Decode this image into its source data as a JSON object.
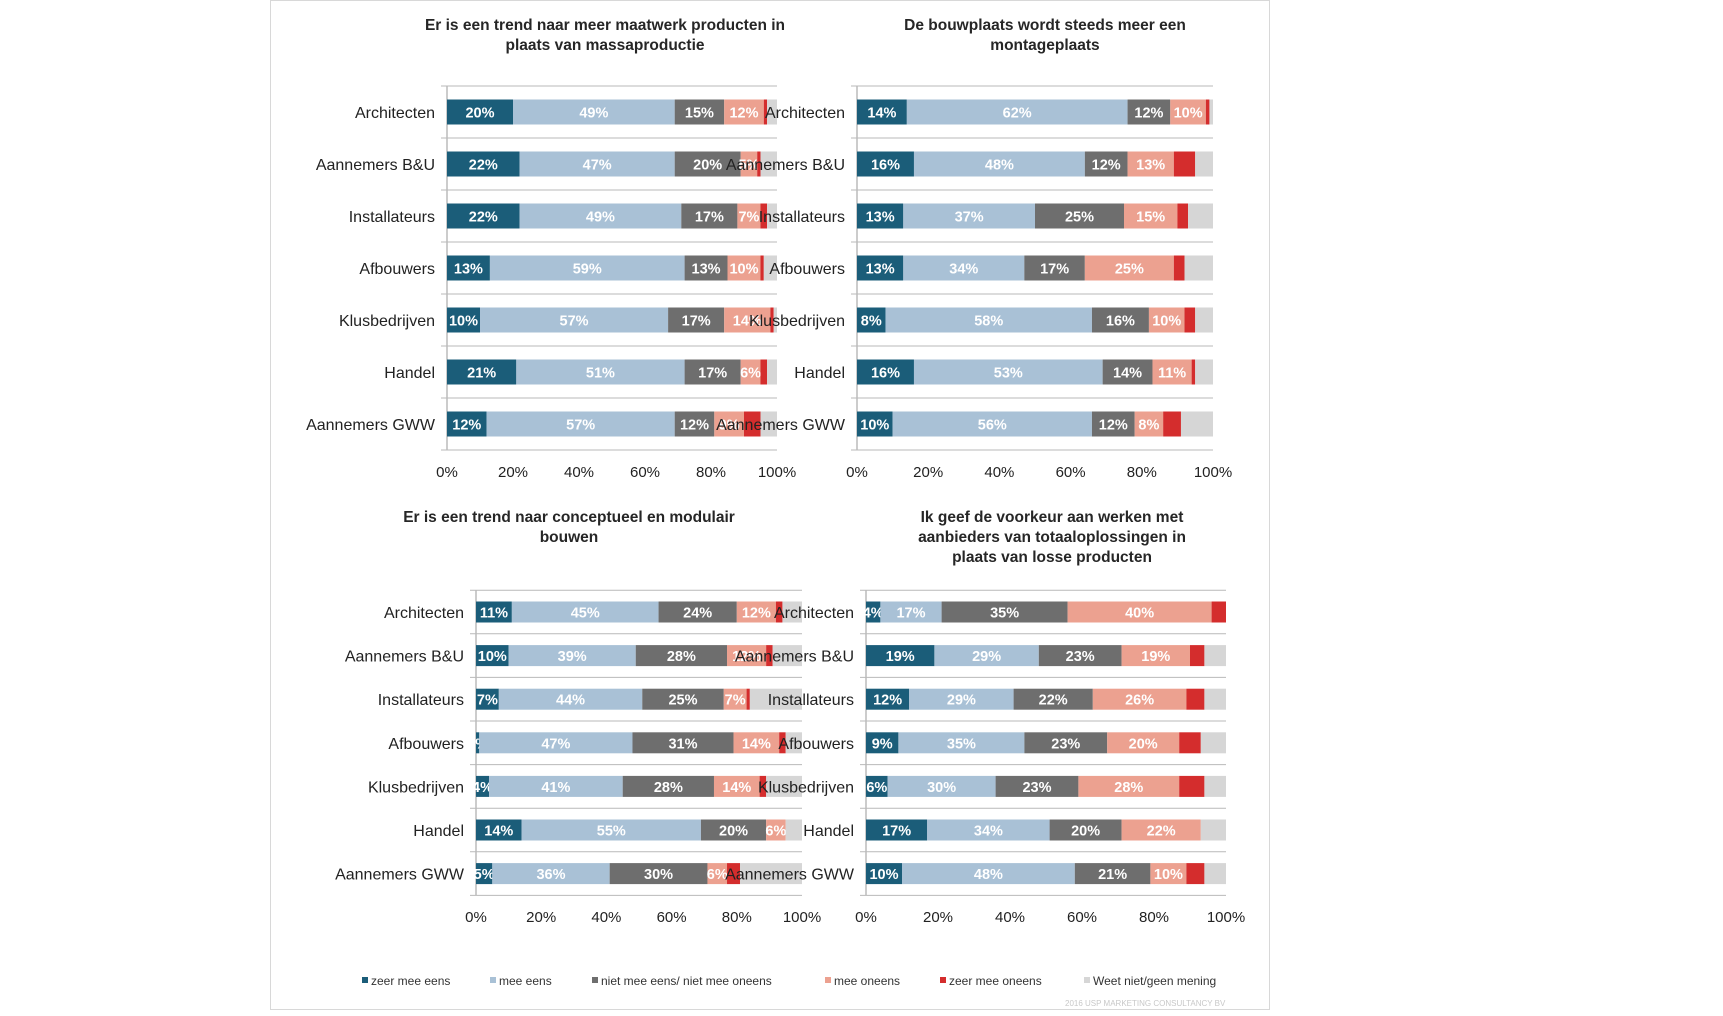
{
  "chart_data": [
    {
      "type": "bar",
      "orientation": "horizontal-stacked-100",
      "title": "Er is een trend naar meer maatwerk producten in plaats van massaproductie",
      "title_lines": [
        "Er is een trend naar meer maatwerk producten in",
        "plaats van massaproductie"
      ],
      "categories": [
        "Architecten",
        "Aannemers B&U",
        "Installateurs",
        "Afbouwers",
        "Klusbedrijven",
        "Handel",
        "Aannemers GWW"
      ],
      "x_ticks": [
        "0%",
        "20%",
        "40%",
        "60%",
        "80%",
        "100%"
      ],
      "xlim": [
        0,
        100
      ],
      "series": [
        {
          "name": "zeer mee eens",
          "values": [
            20,
            22,
            22,
            13,
            10,
            21,
            12
          ],
          "labels": [
            "20%",
            "22%",
            "22%",
            "13%",
            "10%",
            "21%",
            "12%"
          ]
        },
        {
          "name": "mee eens",
          "values": [
            49,
            47,
            49,
            59,
            57,
            51,
            57
          ],
          "labels": [
            "49%",
            "47%",
            "49%",
            "59%",
            "57%",
            "51%",
            "57%"
          ]
        },
        {
          "name": "niet mee eens/ niet mee oneens",
          "values": [
            15,
            20,
            17,
            13,
            17,
            17,
            12
          ],
          "labels": [
            "15%",
            "20%",
            "17%",
            "13%",
            "17%",
            "17%",
            "12%"
          ]
        },
        {
          "name": "mee oneens",
          "values": [
            12,
            5,
            7,
            10,
            14,
            6,
            9
          ],
          "labels": [
            "12%",
            "5%",
            "7%",
            "10%",
            "14%",
            "6%",
            "9%"
          ]
        },
        {
          "name": "zeer mee oneens",
          "values": [
            1,
            1,
            2,
            1,
            1,
            2,
            5
          ],
          "labels": [
            "",
            "",
            "",
            "",
            "",
            "",
            ""
          ]
        },
        {
          "name": "Weet niet/geen mening",
          "values": [
            3,
            5,
            3,
            4,
            1,
            3,
            5
          ],
          "labels": [
            "",
            "",
            "",
            "",
            "",
            "",
            ""
          ]
        }
      ]
    },
    {
      "type": "bar",
      "orientation": "horizontal-stacked-100",
      "title": "De bouwplaats wordt steeds meer een montageplaats",
      "title_lines": [
        "De bouwplaats wordt steeds meer een",
        "montageplaats"
      ],
      "categories": [
        "Architecten",
        "Aannemers B&U",
        "Installateurs",
        "Afbouwers",
        "Klusbedrijven",
        "Handel",
        "Aannemers GWW"
      ],
      "x_ticks": [
        "0%",
        "20%",
        "40%",
        "60%",
        "80%",
        "100%"
      ],
      "xlim": [
        0,
        100
      ],
      "series": [
        {
          "name": "zeer mee eens",
          "values": [
            14,
            16,
            13,
            13,
            8,
            16,
            10
          ],
          "labels": [
            "14%",
            "16%",
            "13%",
            "13%",
            "8%",
            "16%",
            "10%"
          ]
        },
        {
          "name": "mee eens",
          "values": [
            62,
            48,
            37,
            34,
            58,
            53,
            56
          ],
          "labels": [
            "62%",
            "48%",
            "37%",
            "34%",
            "58%",
            "53%",
            "56%"
          ]
        },
        {
          "name": "niet mee eens/ niet mee oneens",
          "values": [
            12,
            12,
            25,
            17,
            16,
            14,
            12
          ],
          "labels": [
            "12%",
            "12%",
            "25%",
            "17%",
            "16%",
            "14%",
            "12%"
          ]
        },
        {
          "name": "mee oneens",
          "values": [
            10,
            13,
            15,
            25,
            10,
            11,
            8
          ],
          "labels": [
            "10%",
            "13%",
            "15%",
            "25%",
            "10%",
            "11%",
            "8%"
          ]
        },
        {
          "name": "zeer mee oneens",
          "values": [
            1,
            6,
            3,
            3,
            3,
            1,
            5
          ],
          "labels": [
            "",
            "",
            "",
            "",
            "",
            "",
            ""
          ]
        },
        {
          "name": "Weet niet/geen mening",
          "values": [
            1,
            5,
            7,
            8,
            5,
            5,
            9
          ],
          "labels": [
            "",
            "",
            "",
            "",
            "",
            "",
            ""
          ]
        }
      ]
    },
    {
      "type": "bar",
      "orientation": "horizontal-stacked-100",
      "title": "Er is een trend naar conceptueel en modulair bouwen",
      "title_lines": [
        "Er is een trend naar conceptueel en modulair",
        "bouwen"
      ],
      "categories": [
        "Architecten",
        "Aannemers B&U",
        "Installateurs",
        "Afbouwers",
        "Klusbedrijven",
        "Handel",
        "Aannemers GWW"
      ],
      "x_ticks": [
        "0%",
        "20%",
        "40%",
        "60%",
        "80%",
        "100%"
      ],
      "xlim": [
        0,
        100
      ],
      "series": [
        {
          "name": "zeer mee eens",
          "values": [
            11,
            10,
            7,
            1,
            4,
            14,
            5
          ],
          "labels": [
            "11%",
            "10%",
            "7%",
            "1%",
            "4%",
            "14%",
            "5%"
          ]
        },
        {
          "name": "mee eens",
          "values": [
            45,
            39,
            44,
            47,
            41,
            55,
            36
          ],
          "labels": [
            "45%",
            "39%",
            "44%",
            "47%",
            "41%",
            "55%",
            "36%"
          ]
        },
        {
          "name": "niet mee eens/ niet mee oneens",
          "values": [
            24,
            28,
            25,
            31,
            28,
            20,
            30
          ],
          "labels": [
            "24%",
            "28%",
            "25%",
            "31%",
            "28%",
            "20%",
            "30%"
          ]
        },
        {
          "name": "mee oneens",
          "values": [
            12,
            12,
            7,
            14,
            14,
            6,
            6
          ],
          "labels": [
            "12%",
            "12%",
            "7%",
            "14%",
            "14%",
            "6%",
            "6%"
          ]
        },
        {
          "name": "zeer mee oneens",
          "values": [
            2,
            2,
            1,
            2,
            2,
            0,
            4
          ],
          "labels": [
            "",
            "",
            "",
            "",
            "",
            "",
            ""
          ]
        },
        {
          "name": "Weet niet/geen mening",
          "values": [
            6,
            9,
            16,
            5,
            11,
            5,
            19
          ],
          "labels": [
            "",
            "",
            "",
            "",
            "",
            "",
            ""
          ]
        }
      ]
    },
    {
      "type": "bar",
      "orientation": "horizontal-stacked-100",
      "title": "Ik geef de voorkeur aan werken met aanbieders van totaaloplossingen in plaats van losse producten",
      "title_lines": [
        "Ik geef de voorkeur aan werken met",
        "aanbieders van totaaloplossingen in",
        "plaats van losse producten"
      ],
      "categories": [
        "Architecten",
        "Aannemers B&U",
        "Installateurs",
        "Afbouwers",
        "Klusbedrijven",
        "Handel",
        "Aannemers GWW"
      ],
      "x_ticks": [
        "0%",
        "20%",
        "40%",
        "60%",
        "80%",
        "100%"
      ],
      "xlim": [
        0,
        100
      ],
      "series": [
        {
          "name": "zeer mee eens",
          "values": [
            4,
            19,
            12,
            9,
            6,
            17,
            10
          ],
          "labels": [
            "4%",
            "19%",
            "12%",
            "9%",
            "6%",
            "17%",
            "10%"
          ]
        },
        {
          "name": "mee eens",
          "values": [
            17,
            29,
            29,
            35,
            30,
            34,
            48
          ],
          "labels": [
            "17%",
            "29%",
            "29%",
            "35%",
            "30%",
            "34%",
            "48%"
          ]
        },
        {
          "name": "niet mee eens/ niet mee oneens",
          "values": [
            35,
            23,
            22,
            23,
            23,
            20,
            21
          ],
          "labels": [
            "35%",
            "23%",
            "22%",
            "23%",
            "23%",
            "20%",
            "21%"
          ]
        },
        {
          "name": "mee oneens",
          "values": [
            40,
            19,
            26,
            20,
            28,
            22,
            10
          ],
          "labels": [
            "40%",
            "19%",
            "26%",
            "20%",
            "28%",
            "22%",
            "10%"
          ]
        },
        {
          "name": "zeer mee oneens",
          "values": [
            4,
            4,
            5,
            6,
            7,
            0,
            5
          ],
          "labels": [
            "",
            "",
            "",
            "",
            "",
            "",
            ""
          ]
        },
        {
          "name": "Weet niet/geen mening",
          "values": [
            0,
            6,
            6,
            7,
            6,
            7,
            6
          ],
          "labels": [
            "",
            "",
            "",
            "",
            "",
            "",
            ""
          ]
        }
      ]
    }
  ],
  "legend": [
    {
      "name": "zeer mee eens",
      "color": "#1b5d79"
    },
    {
      "name": "mee eens",
      "color": "#a9c1d6"
    },
    {
      "name": "niet mee eens/ niet mee oneens",
      "color": "#6e6e6e"
    },
    {
      "name": "mee oneens",
      "color": "#eca190"
    },
    {
      "name": "zeer mee oneens",
      "color": "#d42d2d"
    },
    {
      "name": "Weet niet/geen mening",
      "color": "#d6d6d6"
    }
  ],
  "copyright": "2016 USP MARKETING CONSULTANCY BV"
}
